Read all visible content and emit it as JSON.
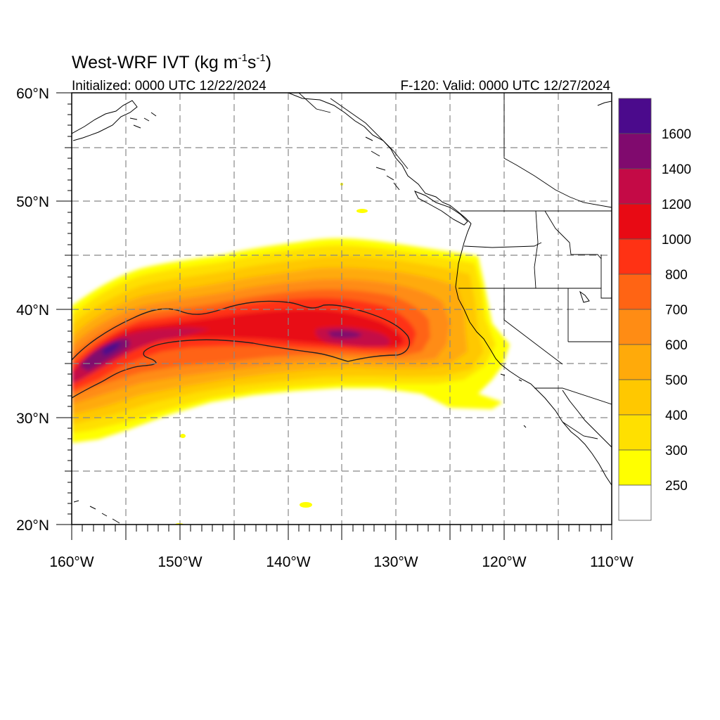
{
  "title": {
    "main": "West-WRF IVT (kg m",
    "sup1": "-1",
    "mid": "s",
    "sup2": "-1",
    "end": ")"
  },
  "subtitle": {
    "left": "Initialized: 0000 UTC 12/22/2024",
    "right": "F-120: Valid: 0000 UTC 12/27/2024"
  },
  "lat_labels": [
    "60°N",
    "50°N",
    "40°N",
    "30°N",
    "20°N"
  ],
  "lon_labels": [
    "160°W",
    "150°W",
    "140°W",
    "130°W",
    "120°W",
    "110°W"
  ],
  "colorbar": {
    "labels": [
      "1600",
      "1400",
      "1200",
      "1000",
      "800",
      "700",
      "600",
      "500",
      "400",
      "300",
      "250"
    ],
    "colors_top_to_bottom": [
      "#4b0a8c",
      "#800a6e",
      "#c40a46",
      "#e80a14",
      "#ff3214",
      "#ff6414",
      "#ff8c14",
      "#ffaa0a",
      "#ffc800",
      "#ffe000",
      "#ffff00",
      "#ffffff"
    ]
  },
  "chart_data": {
    "type": "heatmap",
    "variable": "IVT",
    "units": "kg m-1 s-1",
    "xlim": [
      -160,
      -110
    ],
    "ylim": [
      20,
      60
    ],
    "contour_levels": [
      250,
      300,
      400,
      500,
      600,
      700,
      800,
      1000,
      1200,
      1400,
      1600
    ]
  }
}
